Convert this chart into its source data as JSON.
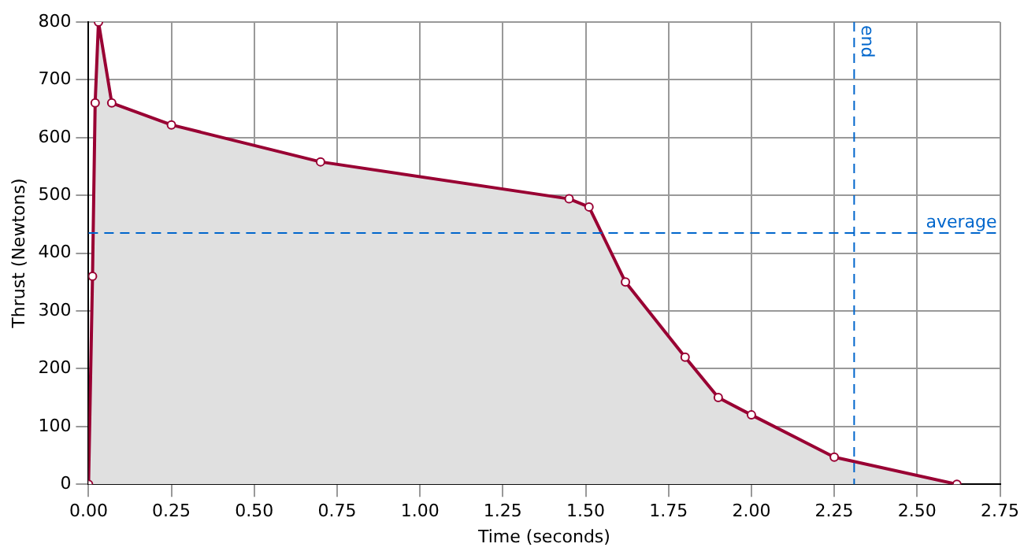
{
  "chart_data": {
    "type": "area",
    "xlabel": "Time (seconds)",
    "ylabel": "Thrust (Newtons)",
    "x": [
      0,
      0.012,
      0.02,
      0.03,
      0.07,
      0.25,
      0.7,
      1.45,
      1.51,
      1.62,
      1.8,
      1.9,
      2.0,
      2.25,
      2.62
    ],
    "series": [
      {
        "color": "#990033",
        "values": [
          0,
          360,
          660,
          800,
          660,
          622,
          558,
          494,
          480,
          350,
          220,
          150,
          120,
          47,
          0
        ]
      }
    ],
    "xlim": [
      0,
      2.75
    ],
    "xticks": [
      {
        "value": 0,
        "label": "0.00"
      },
      {
        "value": 0.25,
        "label": "0.25"
      },
      {
        "value": 0.5,
        "label": "0.50"
      },
      {
        "value": 0.75,
        "label": "0.75"
      },
      {
        "value": 1,
        "label": "1.00"
      },
      {
        "value": 1.25,
        "label": "1.25"
      },
      {
        "value": 1.5,
        "label": "1.50"
      },
      {
        "value": 1.75,
        "label": "1.75"
      },
      {
        "value": 2,
        "label": "2.00"
      },
      {
        "value": 2.25,
        "label": "2.25"
      },
      {
        "value": 2.5,
        "label": "2.50"
      },
      {
        "value": 2.75,
        "label": "2.75"
      }
    ],
    "ylim": [
      0,
      800
    ],
    "yticks": [
      0,
      100,
      200,
      300,
      400,
      500,
      600,
      700,
      800
    ],
    "ref_lines": [
      {
        "axis": "y",
        "value": 435,
        "label": "average",
        "color": "#0066cc",
        "line_style": "dashed"
      },
      {
        "axis": "x",
        "value": 2.31,
        "label": "end",
        "color": "#0066cc",
        "line_style": "dashed"
      }
    ],
    "grid": true,
    "marker": "circle",
    "line_style": "solid"
  }
}
